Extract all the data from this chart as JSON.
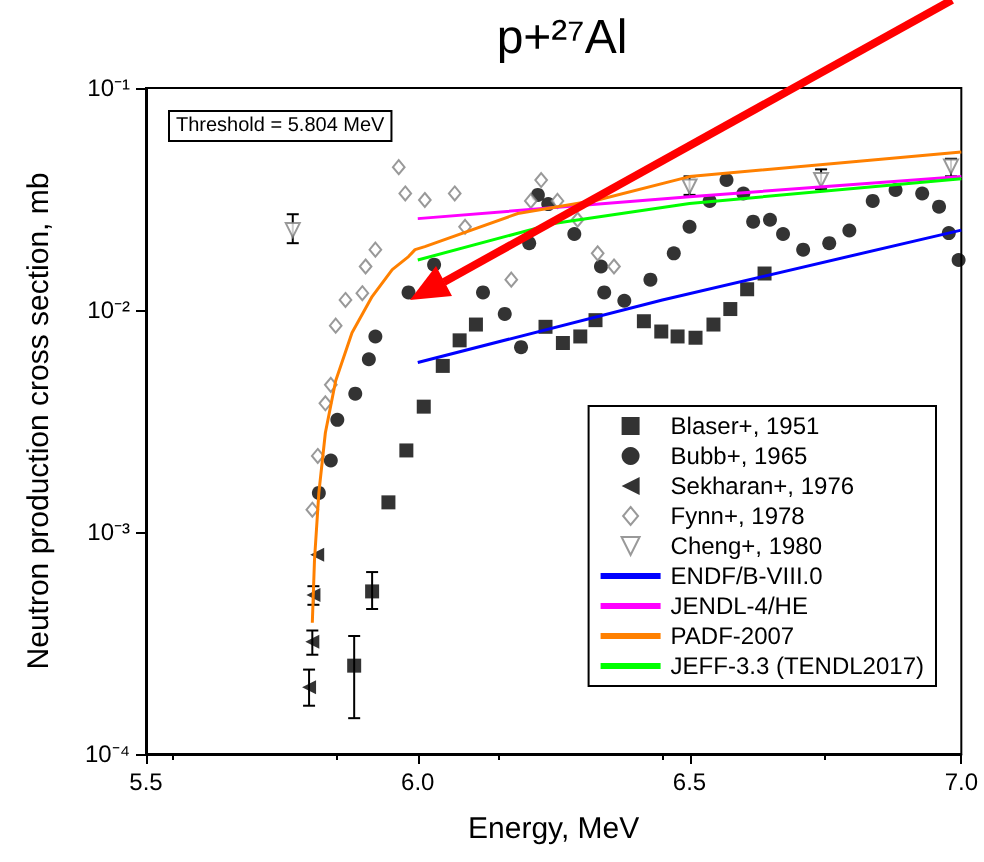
{
  "chart_data": {
    "type": "scatter",
    "title": "p+²⁷Al",
    "xlabel": "Energy, MeV",
    "ylabel": "Neutron production cross section, mb",
    "annotations": [
      "Threshold = 5.804 MeV"
    ],
    "xlim": [
      5.5,
      7.0
    ],
    "xticks": [
      5.5,
      {
        "value": 6,
        "label": "6.0"
      },
      6.5,
      {
        "value": 7,
        "label": "7.0"
      }
    ],
    "ylim": [
      0.0001,
      0.1
    ],
    "log": "y",
    "yticks": [
      {
        "value": 0.0001,
        "label": "10⁻⁴"
      },
      {
        "value": 0.001,
        "label": "10⁻³"
      },
      {
        "value": 0.01,
        "label": "10⁻²"
      },
      {
        "value": 0.1,
        "label": "10⁻¹"
      }
    ],
    "grid": false,
    "legend": "bottom right",
    "series": [
      {
        "name": "Blaser+, 1951",
        "marker": "square",
        "color": "#000000",
        "x": [
          5.883,
          5.916,
          5.946,
          5.979,
          6.011,
          6.046,
          6.077,
          6.107,
          6.235,
          6.267,
          6.299,
          6.327,
          6.416,
          6.448,
          6.478,
          6.511,
          6.544,
          6.575,
          6.606,
          6.638
        ],
        "values": [
          0.00025,
          0.00054,
          0.00136,
          0.00233,
          0.00367,
          0.0056,
          0.0073,
          0.0086,
          0.0084,
          0.0071,
          0.0076,
          0.009,
          0.0089,
          0.008,
          0.0076,
          0.0075,
          0.0086,
          0.0101,
          0.0124,
          0.0146
        ],
        "errors": [
          [
            0.000145,
            0.00034
          ],
          [
            0.00045,
            0.00066
          ],
          null,
          null,
          null,
          null,
          null,
          null,
          null,
          null,
          null,
          null,
          null,
          null,
          null,
          null,
          null,
          null,
          null,
          null
        ]
      },
      {
        "name": "Bubb+, 1965",
        "marker": "circle",
        "color": "#000000",
        "x": [
          5.818,
          5.84,
          5.852,
          5.885,
          5.91,
          5.922,
          5.983,
          6.03,
          6.087,
          6.12,
          6.16,
          6.19,
          6.205,
          6.221,
          6.24,
          6.288,
          6.337,
          6.343,
          6.38,
          6.428,
          6.471,
          6.5,
          6.537,
          6.568,
          6.599,
          6.617,
          6.648,
          6.672,
          6.709,
          6.757,
          6.794,
          6.837,
          6.879,
          6.928,
          6.959,
          6.977,
          6.995
        ],
        "values": [
          0.0015,
          0.0021,
          0.0032,
          0.0042,
          0.006,
          0.0076,
          0.012,
          0.016,
          null,
          0.012,
          0.0096,
          0.0068,
          0.02,
          0.033,
          0.03,
          0.022,
          0.0157,
          0.012,
          0.011,
          0.0137,
          0.018,
          0.0237,
          0.031,
          0.0385,
          0.0335,
          0.025,
          0.0255,
          0.022,
          0.0187,
          0.02,
          0.0228,
          0.031,
          0.0347,
          0.0335,
          0.0292,
          0.0222,
          0.0168
        ]
      },
      {
        "name": "Sekharan+, 1976",
        "marker": "triangle-left",
        "color": "#000000",
        "x": [
          5.8,
          5.806,
          5.808,
          5.815
        ],
        "values": [
          0.0002,
          0.00032,
          0.00052,
          0.00079
        ],
        "errors": [
          [
            0.000165,
            0.00024
          ],
          [
            0.00028,
            0.00036
          ],
          [
            0.00047,
            0.00057
          ],
          null
        ]
      },
      {
        "name": "Fynn+, 1978",
        "marker": "diamond-open",
        "color": "#808080",
        "x": [
          5.806,
          5.816,
          5.83,
          5.84,
          5.849,
          5.867,
          5.898,
          5.904,
          5.922,
          5.965,
          5.977,
          6.013,
          6.068,
          6.087,
          6.135,
          6.172,
          6.208,
          6.227,
          6.257,
          6.294,
          6.331,
          6.361
        ],
        "values": [
          0.00126,
          0.0022,
          0.0038,
          0.0046,
          0.0085,
          0.0111,
          0.0119,
          0.0157,
          0.0187,
          0.044,
          0.0335,
          0.0313,
          0.0335,
          0.0237,
          null,
          0.0137,
          0.031,
          0.0385,
          0.031,
          0.0255,
          0.018,
          0.0157
        ]
      },
      {
        "name": "Cheng+, 1980",
        "marker": "triangle-down-open",
        "color": "#808080",
        "x": [
          5.77,
          6.5,
          6.742,
          6.981
        ],
        "values": [
          0.0229,
          0.036,
          0.0385,
          0.0443
        ],
        "errors": [
          [
            0.02,
            0.027
          ],
          [
            0.033,
            0.04
          ],
          [
            0.035,
            0.043
          ],
          [
            0.04,
            0.048
          ]
        ]
      },
      {
        "name": "ENDF/B-VIII.0",
        "type": "line",
        "color": "#0000ff",
        "x": [
          6.0,
          6.45,
          7.0
        ],
        "values": [
          0.0058,
          0.0111,
          0.0229
        ]
      },
      {
        "name": "JENDL-4/HE",
        "type": "line",
        "color": "#ff00ff",
        "x": [
          6.0,
          6.5,
          7.0
        ],
        "values": [
          0.0258,
          0.0324,
          0.0399
        ]
      },
      {
        "name": "PADF-2007",
        "type": "line",
        "color": "#ff8000",
        "x": [
          5.806,
          5.81,
          5.818,
          5.83,
          5.849,
          5.879,
          5.916,
          5.953,
          5.983,
          5.995,
          6.013,
          6.184,
          6.331,
          6.5,
          7.0
        ],
        "values": [
          0.00039,
          0.00075,
          0.0015,
          0.0028,
          0.0048,
          0.0079,
          0.0115,
          0.0152,
          0.0174,
          0.0187,
          0.0193,
          0.0272,
          0.0313,
          0.0399,
          0.0515
        ]
      },
      {
        "name": "JEFF-3.3 (TENDL2017)",
        "type": "line",
        "color": "#00ff00",
        "x": [
          6.0,
          6.25,
          6.5,
          7.0
        ],
        "values": [
          0.0168,
          0.0245,
          0.0302,
          0.039
        ]
      }
    ]
  }
}
